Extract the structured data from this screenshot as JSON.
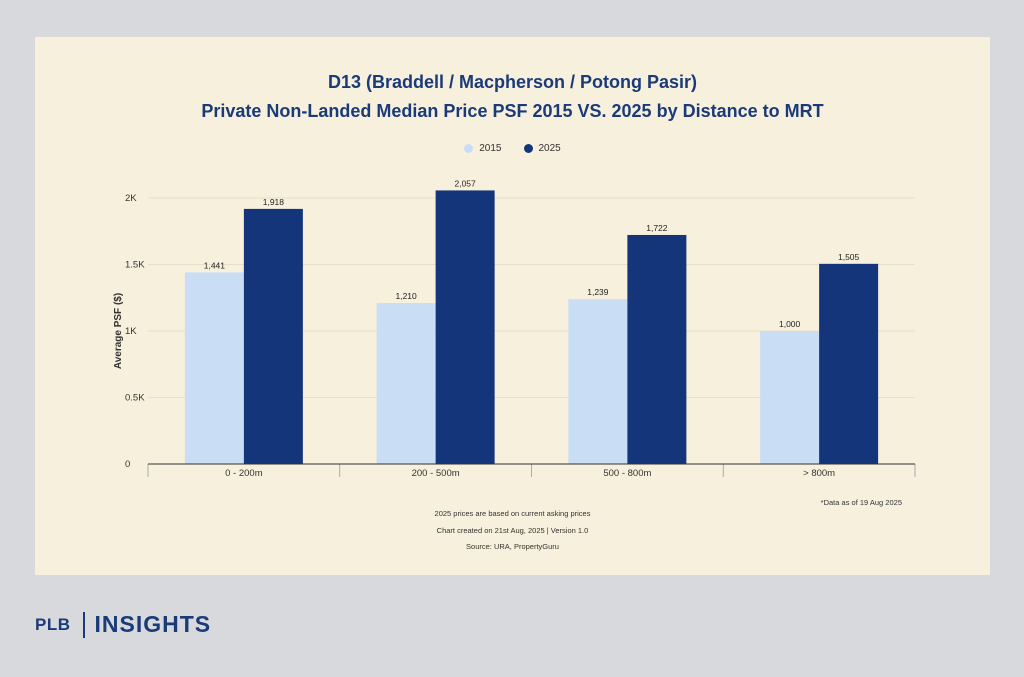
{
  "chart_data": {
    "type": "bar",
    "title": "D13 (Braddell / Macpherson / Potong Pasir)",
    "subtitle": "Private Non-Landed Median Price PSF 2015 VS. 2025 by Distance to MRT",
    "categories": [
      "0 - 200m",
      "200 - 500m",
      "500 - 800m",
      "> 800m"
    ],
    "series": [
      {
        "name": "2015",
        "values": [
          1441,
          1210,
          1239,
          1000
        ],
        "labels": [
          "1,441",
          "1,210",
          "1,239",
          "1,000"
        ],
        "color": "#c9ddf4"
      },
      {
        "name": "2025",
        "values": [
          1918,
          2057,
          1722,
          1505
        ],
        "labels": [
          "1,918",
          "2,057",
          "1,722",
          "1,505"
        ],
        "color": "#15357a"
      }
    ],
    "ylabel": "Average PSF ($)",
    "xlabel": "",
    "ylim": [
      0,
      2000
    ],
    "yticks": [
      0,
      500,
      1000,
      1500,
      2000
    ],
    "ytick_labels": [
      "0",
      "0.5K",
      "1K",
      "1.5K",
      "2K"
    ],
    "grid": true,
    "legend_position": "top-center"
  },
  "footnotes": {
    "data_note": "*Data as of 19 Aug 2025",
    "asking": "2025 prices are based on current asking prices",
    "created": "Chart created on 21st Aug, 2025 | Version 1.0",
    "source": "Source: URA, PropertyGuru"
  },
  "branding": {
    "left": "PLB",
    "right": "INSIGHTS"
  },
  "colors": {
    "title": "#1b3a7a",
    "card_background": "#f6f0dc",
    "page_background": "#d7d9dc"
  }
}
